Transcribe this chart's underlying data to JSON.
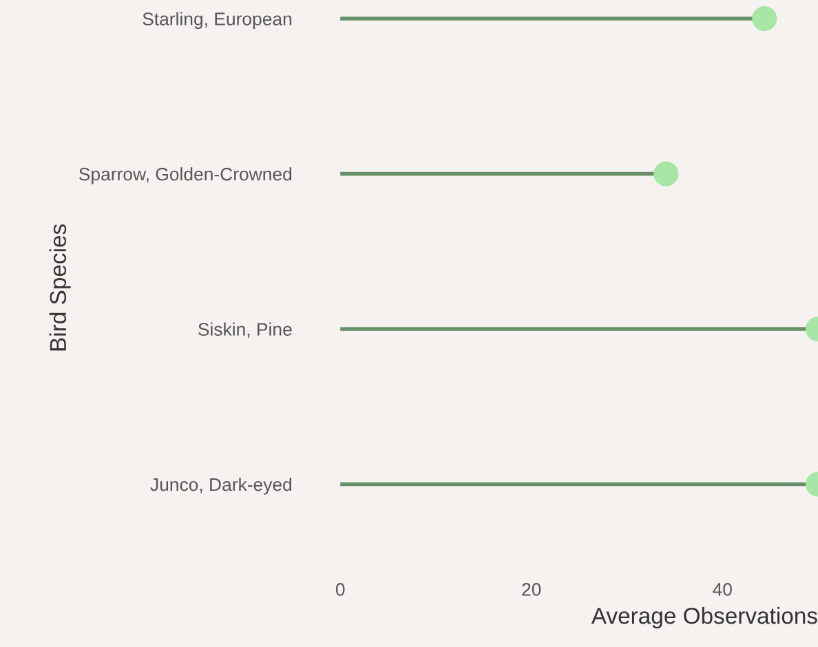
{
  "chart_data": {
    "type": "lollipop",
    "orientation": "horizontal",
    "xlabel": "Average Observations",
    "ylabel": "Bird Species",
    "categories": [
      "Starling, European",
      "Sparrow, Golden-Crowned",
      "Siskin, Pine",
      "Junco, Dark-eyed"
    ],
    "values": [
      44.4,
      34.1,
      50,
      50
    ],
    "color": "#a8e6a8",
    "marker": "circle",
    "xlim": [
      0,
      50
    ],
    "xticks": [
      0,
      20,
      40
    ],
    "grid": false
  }
}
